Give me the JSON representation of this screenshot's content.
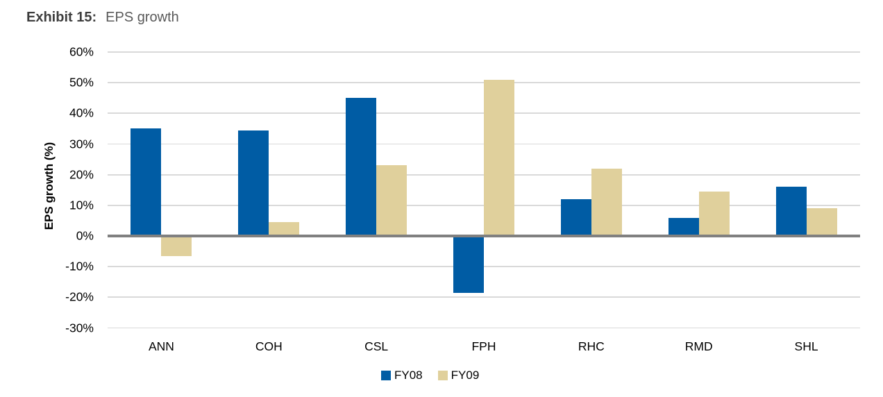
{
  "title": {
    "label": "Exhibit 15:",
    "text": "EPS growth"
  },
  "colors": {
    "series_fy08": "#005CA4",
    "series_fy09": "#E0D09C",
    "gridline": "#D9D9D9",
    "zero_line": "#808080",
    "title_bold": "#3D3D3D",
    "title_normal": "#595959",
    "axis_text": "#000000"
  },
  "chart_data": {
    "type": "bar",
    "title": "EPS growth",
    "exhibit_label": "Exhibit 15:",
    "xlabel": "",
    "ylabel": "EPS growth (%)",
    "categories": [
      "ANN",
      "COH",
      "CSL",
      "FPH",
      "RHC",
      "RMD",
      "SHL"
    ],
    "series": [
      {
        "name": "FY08",
        "color": "#005CA4",
        "values": [
          35,
          34.5,
          45,
          -18.5,
          12,
          6,
          16
        ]
      },
      {
        "name": "FY09",
        "color": "#E0D09C",
        "values": [
          -6.5,
          4.5,
          23,
          51,
          22,
          14.5,
          9
        ]
      }
    ],
    "ylim": [
      -30,
      60
    ],
    "ytick_step": 10,
    "ytick_labels": [
      "60%",
      "50%",
      "40%",
      "30%",
      "20%",
      "10%",
      "0%",
      "-10%",
      "-20%",
      "-30%"
    ],
    "grid": true,
    "legend_position": "bottom"
  }
}
